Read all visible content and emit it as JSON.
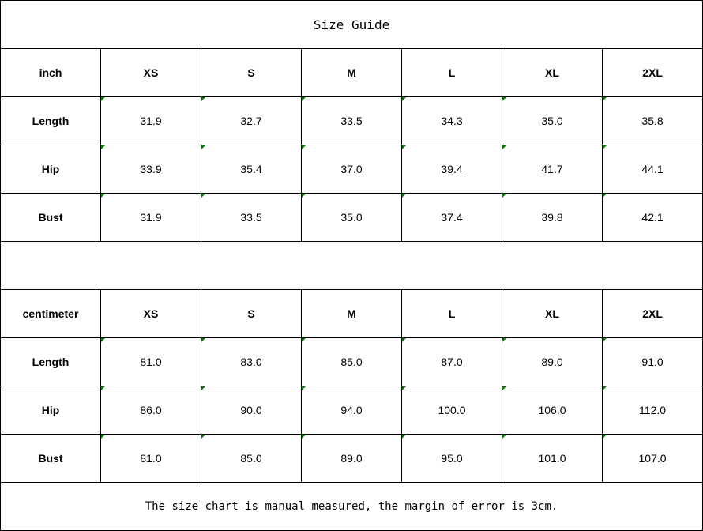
{
  "title": "Size Guide",
  "tables": [
    {
      "unit": "inch",
      "sizes": [
        "XS",
        "S",
        "M",
        "L",
        "XL",
        "2XL"
      ],
      "rows": [
        {
          "label": "Length",
          "values": [
            "31.9",
            "32.7",
            "33.5",
            "34.3",
            "35.0",
            "35.8"
          ]
        },
        {
          "label": "Hip",
          "values": [
            "33.9",
            "35.4",
            "37.0",
            "39.4",
            "41.7",
            "44.1"
          ]
        },
        {
          "label": "Bust",
          "values": [
            "31.9",
            "33.5",
            "35.0",
            "37.4",
            "39.8",
            "42.1"
          ]
        }
      ]
    },
    {
      "unit": "centimeter",
      "sizes": [
        "XS",
        "S",
        "M",
        "L",
        "XL",
        "2XL"
      ],
      "rows": [
        {
          "label": "Length",
          "values": [
            "81.0",
            "83.0",
            "85.0",
            "87.0",
            "89.0",
            "91.0"
          ]
        },
        {
          "label": "Hip",
          "values": [
            "86.0",
            "90.0",
            "94.0",
            "100.0",
            "106.0",
            "112.0"
          ]
        },
        {
          "label": "Bust",
          "values": [
            "81.0",
            "85.0",
            "89.0",
            "95.0",
            "101.0",
            "107.0"
          ]
        }
      ]
    }
  ],
  "footer": "The size chart is manual measured, the margin of error is 3cm.",
  "colors": {
    "error_indicator": "#008000",
    "border": "#000000"
  }
}
